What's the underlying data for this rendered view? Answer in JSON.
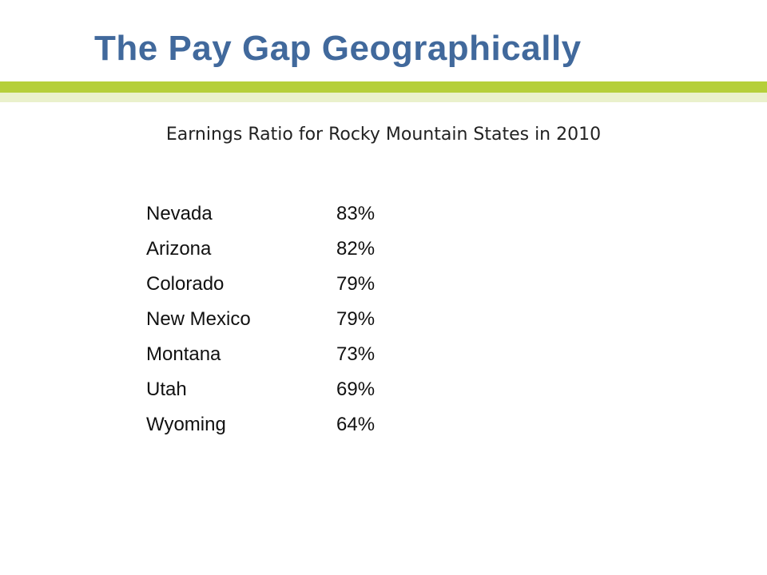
{
  "header": {
    "title": "The Pay Gap Geographically",
    "subtitle": "Earnings Ratio for Rocky Mountain States in 2010"
  },
  "table": {
    "rows": [
      [
        "Nevada",
        "83%"
      ],
      [
        "Arizona",
        "82%"
      ],
      [
        "Colorado",
        "79%"
      ],
      [
        "New Mexico",
        "79%"
      ],
      [
        "Montana",
        "73%"
      ],
      [
        "Utah",
        "69%"
      ],
      [
        "Wyoming",
        "64%"
      ]
    ]
  }
}
